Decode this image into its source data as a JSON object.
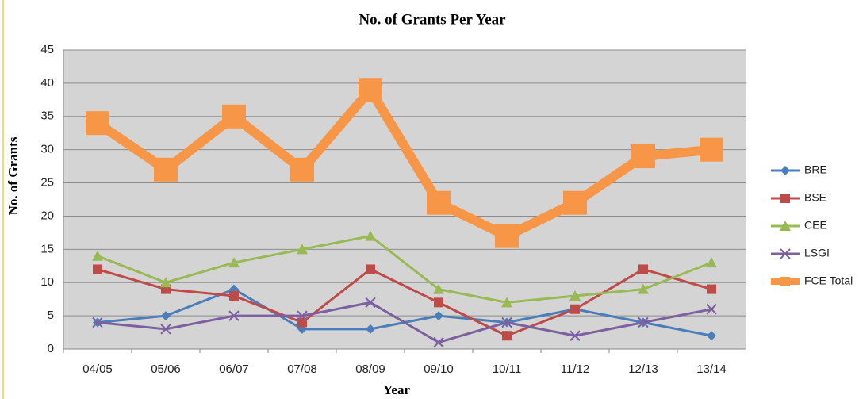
{
  "chart_data": {
    "type": "line",
    "title": "No. of Grants Per Year",
    "x_label": "Year",
    "y_label": "No. of Grants",
    "categories": [
      "04/05",
      "05/06",
      "06/07",
      "07/08",
      "08/09",
      "09/10",
      "10/11",
      "11/12",
      "12/13",
      "13/14"
    ],
    "series": [
      {
        "name": "BRE",
        "color": "#4a7ebb",
        "marker": "diamond",
        "values": [
          4,
          5,
          9,
          3,
          3,
          5,
          4,
          6,
          4,
          2
        ]
      },
      {
        "name": "BSE",
        "color": "#be4b48",
        "marker": "square",
        "values": [
          12,
          9,
          8,
          4,
          12,
          7,
          2,
          6,
          12,
          9
        ]
      },
      {
        "name": "CEE",
        "color": "#98b954",
        "marker": "triangle",
        "values": [
          14,
          10,
          13,
          15,
          17,
          9,
          7,
          8,
          9,
          13
        ]
      },
      {
        "name": "LSGI",
        "color": "#7d60a0",
        "marker": "x",
        "values": [
          4,
          3,
          5,
          5,
          7,
          1,
          4,
          2,
          4,
          6
        ]
      },
      {
        "name": "FCE Total",
        "color": "#f79646",
        "marker": "bigsquare",
        "values": [
          34,
          27,
          35,
          27,
          39,
          22,
          17,
          22,
          29,
          30
        ]
      }
    ],
    "ylim": [
      0,
      45
    ],
    "yticks": [
      0,
      5,
      10,
      15,
      20,
      25,
      30,
      35,
      40,
      45
    ],
    "grid": true,
    "legend": "right"
  }
}
